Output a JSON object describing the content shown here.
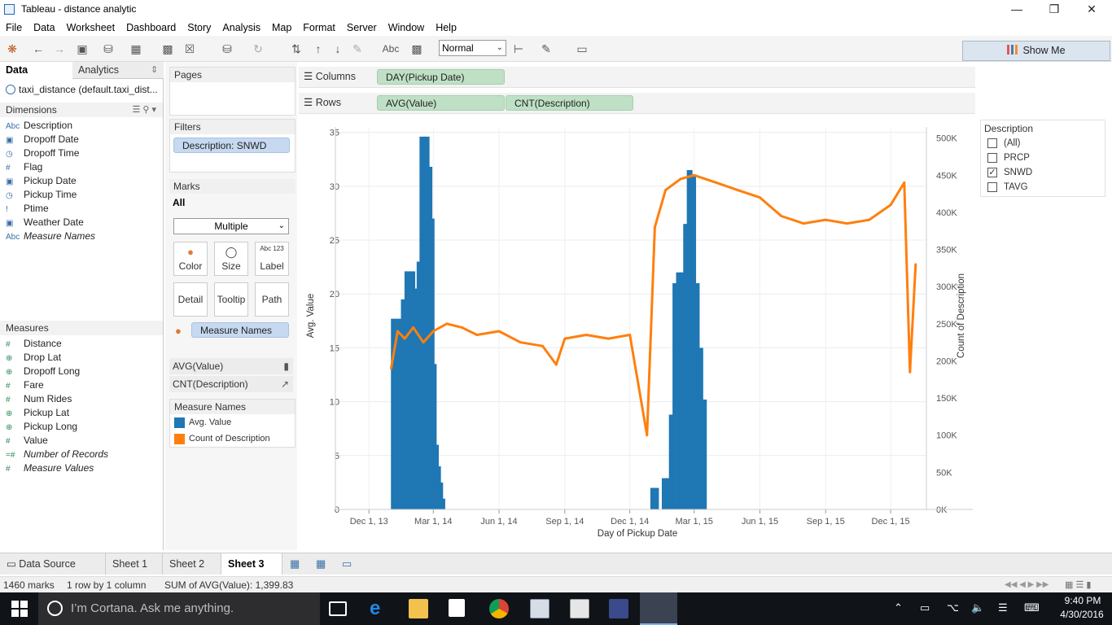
{
  "window": {
    "title": "Tableau - distance analytic"
  },
  "menu": [
    "File",
    "Data",
    "Worksheet",
    "Dashboard",
    "Story",
    "Analysis",
    "Map",
    "Format",
    "Server",
    "Window",
    "Help"
  ],
  "toolbar": {
    "fit_value": "Normal",
    "show_me": "Show Me"
  },
  "left_pane": {
    "tabs": {
      "data": "Data",
      "analytics": "Analytics"
    },
    "datasource": "taxi_distance (default.taxi_dist...",
    "dimensions_header": "Dimensions",
    "dimensions": [
      {
        "icon": "Abc",
        "name": "Description"
      },
      {
        "icon": "date",
        "name": "Dropoff Date"
      },
      {
        "icon": "datetime",
        "name": "Dropoff Time"
      },
      {
        "icon": "#",
        "name": "Flag"
      },
      {
        "icon": "date",
        "name": "Pickup Date"
      },
      {
        "icon": "datetime",
        "name": "Pickup Time"
      },
      {
        "icon": "!",
        "name": "Ptime"
      },
      {
        "icon": "date",
        "name": "Weather Date"
      },
      {
        "icon": "Abc",
        "name": "Measure Names"
      }
    ],
    "measures_header": "Measures",
    "measures": [
      {
        "icon": "#",
        "name": "Distance"
      },
      {
        "icon": "globe",
        "name": "Drop Lat"
      },
      {
        "icon": "globe",
        "name": "Dropoff Long"
      },
      {
        "icon": "#",
        "name": "Fare"
      },
      {
        "icon": "#",
        "name": "Num Rides"
      },
      {
        "icon": "globe",
        "name": "Pickup Lat"
      },
      {
        "icon": "globe",
        "name": "Pickup Long"
      },
      {
        "icon": "#",
        "name": "Value"
      },
      {
        "icon": "=#",
        "name": "Number of Records"
      },
      {
        "icon": "#",
        "name": "Measure Values"
      }
    ]
  },
  "cards": {
    "pages": "Pages",
    "filters": "Filters",
    "filter_pill": "Description: SNWD",
    "marks": "Marks",
    "marks_all": "All",
    "mark_type": "Multiple",
    "mark_buttons": [
      "Color",
      "Size",
      "Label",
      "Detail",
      "Tooltip",
      "Path"
    ],
    "label_icon": "Abc 123",
    "measure_names_pill": "Measure Names",
    "avg_value": "AVG(Value)",
    "cnt_description": "CNT(Description)",
    "measure_names_header": "Measure Names",
    "legend_items": [
      {
        "name": "Avg. Value",
        "color": "#1f77b4"
      },
      {
        "name": "Count of Description",
        "color": "#ff7f0e"
      }
    ]
  },
  "shelves": {
    "columns_label": "Columns",
    "columns_pill": "DAY(Pickup Date)",
    "rows_label": "Rows",
    "rows_pills": [
      "AVG(Value)",
      "CNT(Description)"
    ]
  },
  "filter_legend": {
    "title": "Description",
    "items": [
      {
        "label": "(All)",
        "checked": false
      },
      {
        "label": "PRCP",
        "checked": false
      },
      {
        "label": "SNWD",
        "checked": true
      },
      {
        "label": "TAVG",
        "checked": false
      }
    ]
  },
  "chart_data": {
    "type": "bar",
    "title": "",
    "xlabel": "Day of Pickup Date",
    "ylabel": "Avg. Value",
    "y2label": "Count of Description",
    "x_ticks": [
      "Dec 1, 13",
      "Mar 1, 14",
      "Jun 1, 14",
      "Sep 1, 14",
      "Dec 1, 14",
      "Mar 1, 15",
      "Jun 1, 15",
      "Sep 1, 15",
      "Dec 1, 15"
    ],
    "x_range": [
      "2013-10-15",
      "2016-01-20"
    ],
    "y_ticks": [
      0,
      5,
      10,
      15,
      20,
      25,
      30,
      35
    ],
    "ylim": [
      0,
      35.5
    ],
    "y2_ticks": [
      "0K",
      "50K",
      "100K",
      "150K",
      "200K",
      "250K",
      "300K",
      "350K",
      "400K",
      "450K",
      "500K"
    ],
    "y2lim": [
      0,
      515000
    ],
    "grid": true,
    "series": [
      {
        "name": "Avg. Value",
        "mark": "bar",
        "color": "#1f77b4",
        "points": [
          {
            "x": "2014-01-03",
            "y": 17.7
          },
          {
            "x": "2014-01-10",
            "y": 17.7
          },
          {
            "x": "2014-01-17",
            "y": 19.5
          },
          {
            "x": "2014-01-22",
            "y": 22.1
          },
          {
            "x": "2014-01-29",
            "y": 22.1
          },
          {
            "x": "2014-02-03",
            "y": 20.5
          },
          {
            "x": "2014-02-08",
            "y": 23.0
          },
          {
            "x": "2014-02-12",
            "y": 34.6
          },
          {
            "x": "2014-02-18",
            "y": 34.6
          },
          {
            "x": "2014-02-22",
            "y": 31.8
          },
          {
            "x": "2014-02-25",
            "y": 27.0
          },
          {
            "x": "2014-02-28",
            "y": 13.5
          },
          {
            "x": "2014-03-03",
            "y": 6.0
          },
          {
            "x": "2014-03-06",
            "y": 4.0
          },
          {
            "x": "2014-03-09",
            "y": 2.5
          },
          {
            "x": "2014-03-12",
            "y": 1.0
          },
          {
            "x": "2015-01-01",
            "y": 2.0
          },
          {
            "x": "2015-01-05",
            "y": 2.0
          },
          {
            "x": "2015-01-17",
            "y": 2.9
          },
          {
            "x": "2015-01-22",
            "y": 2.9
          },
          {
            "x": "2015-01-27",
            "y": 8.8
          },
          {
            "x": "2015-02-01",
            "y": 21.0
          },
          {
            "x": "2015-02-06",
            "y": 22.0
          },
          {
            "x": "2015-02-11",
            "y": 22.0
          },
          {
            "x": "2015-02-16",
            "y": 26.5
          },
          {
            "x": "2015-02-21",
            "y": 31.5
          },
          {
            "x": "2015-02-26",
            "y": 31.0
          },
          {
            "x": "2015-03-03",
            "y": 21.0
          },
          {
            "x": "2015-03-08",
            "y": 15.0
          },
          {
            "x": "2015-03-13",
            "y": 10.2
          }
        ]
      },
      {
        "name": "Count of Description",
        "mark": "line",
        "color": "#ff7f0e",
        "points": [
          {
            "x": "2014-01-01",
            "y": 190000
          },
          {
            "x": "2014-01-10",
            "y": 240000
          },
          {
            "x": "2014-01-20",
            "y": 230000
          },
          {
            "x": "2014-02-01",
            "y": 245000
          },
          {
            "x": "2014-02-15",
            "y": 225000
          },
          {
            "x": "2014-03-01",
            "y": 240000
          },
          {
            "x": "2014-03-20",
            "y": 250000
          },
          {
            "x": "2014-04-10",
            "y": 245000
          },
          {
            "x": "2014-05-01",
            "y": 235000
          },
          {
            "x": "2014-06-01",
            "y": 240000
          },
          {
            "x": "2014-07-01",
            "y": 225000
          },
          {
            "x": "2014-08-01",
            "y": 220000
          },
          {
            "x": "2014-08-20",
            "y": 195000
          },
          {
            "x": "2014-09-01",
            "y": 230000
          },
          {
            "x": "2014-10-01",
            "y": 235000
          },
          {
            "x": "2014-11-01",
            "y": 230000
          },
          {
            "x": "2014-12-01",
            "y": 235000
          },
          {
            "x": "2014-12-25",
            "y": 100000
          },
          {
            "x": "2015-01-05",
            "y": 380000
          },
          {
            "x": "2015-01-20",
            "y": 430000
          },
          {
            "x": "2015-02-10",
            "y": 445000
          },
          {
            "x": "2015-03-01",
            "y": 450000
          },
          {
            "x": "2015-04-01",
            "y": 440000
          },
          {
            "x": "2015-05-01",
            "y": 430000
          },
          {
            "x": "2015-06-01",
            "y": 420000
          },
          {
            "x": "2015-07-01",
            "y": 395000
          },
          {
            "x": "2015-08-01",
            "y": 385000
          },
          {
            "x": "2015-09-01",
            "y": 390000
          },
          {
            "x": "2015-10-01",
            "y": 385000
          },
          {
            "x": "2015-11-01",
            "y": 390000
          },
          {
            "x": "2015-12-01",
            "y": 410000
          },
          {
            "x": "2015-12-20",
            "y": 440000
          },
          {
            "x": "2015-12-28",
            "y": 185000
          },
          {
            "x": "2016-01-05",
            "y": 330000
          }
        ]
      }
    ]
  },
  "sheets": {
    "datasource": "Data Source",
    "tabs": [
      "Sheet 1",
      "Sheet 2",
      "Sheet 3"
    ],
    "active": "Sheet 3"
  },
  "status": {
    "marks": "1460 marks",
    "layout": "1 row by 1 column",
    "sum": "SUM of AVG(Value): 1,399.83"
  },
  "taskbar": {
    "cortana": "I’m Cortana. Ask me anything.",
    "time": "9:40 PM",
    "date": "4/30/2016"
  }
}
